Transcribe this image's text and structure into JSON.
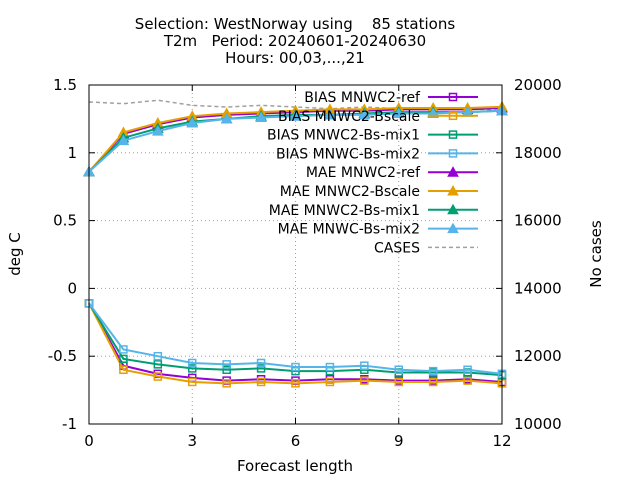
{
  "chart_data": {
    "type": "line",
    "title_lines": [
      "Selection: WestNorway using    85 stations",
      "T2m   Period: 20240601-20240630",
      "Hours: 00,03,...,21"
    ],
    "xlabel": "Forecast length",
    "ylabel": "deg C",
    "y2label": "No cases",
    "xlim": [
      0,
      12
    ],
    "ylim": [
      -1,
      1.5
    ],
    "y2lim": [
      10000,
      20000
    ],
    "xticks": [
      0,
      3,
      6,
      9,
      12
    ],
    "yticks": [
      -1,
      -0.5,
      0,
      0.5,
      1,
      1.5
    ],
    "yticklabels": [
      "-1",
      "-0.5",
      "0",
      "0.5",
      "1",
      "1.5"
    ],
    "y2ticks": [
      10000,
      12000,
      14000,
      16000,
      18000,
      20000
    ],
    "grid": true,
    "legend_position": "top-right",
    "x": [
      0,
      1,
      2,
      3,
      4,
      5,
      6,
      7,
      8,
      9,
      10,
      11,
      12
    ],
    "series": [
      {
        "name": "BIAS MNWC2-ref",
        "axis": "y",
        "color": "#9400d3",
        "marker": "square-open",
        "dash": false,
        "values": [
          -0.11,
          -0.57,
          -0.63,
          -0.66,
          -0.68,
          -0.67,
          -0.68,
          -0.67,
          -0.67,
          -0.68,
          -0.68,
          -0.67,
          -0.69
        ]
      },
      {
        "name": "BIAS MNWC2-Bscale",
        "axis": "y",
        "color": "#e69f00",
        "marker": "square-open",
        "dash": false,
        "values": [
          -0.11,
          -0.6,
          -0.65,
          -0.69,
          -0.7,
          -0.69,
          -0.7,
          -0.69,
          -0.68,
          -0.69,
          -0.69,
          -0.68,
          -0.7
        ]
      },
      {
        "name": "BIAS MNWC2-Bs-mix1",
        "axis": "y",
        "color": "#009e73",
        "marker": "square-open",
        "dash": false,
        "values": [
          -0.11,
          -0.52,
          -0.56,
          -0.59,
          -0.6,
          -0.59,
          -0.61,
          -0.61,
          -0.6,
          -0.62,
          -0.62,
          -0.62,
          -0.64
        ]
      },
      {
        "name": "BIAS MNWC-Bs-mix2",
        "axis": "y",
        "color": "#56b4e9",
        "marker": "square-open",
        "dash": false,
        "values": [
          -0.11,
          -0.45,
          -0.5,
          -0.55,
          -0.56,
          -0.55,
          -0.58,
          -0.58,
          -0.57,
          -0.6,
          -0.61,
          -0.6,
          -0.63
        ]
      },
      {
        "name": "MAE MNWC2-ref",
        "axis": "y",
        "color": "#9400d3",
        "marker": "triangle-filled",
        "dash": false,
        "values": [
          0.86,
          1.14,
          1.21,
          1.26,
          1.28,
          1.29,
          1.3,
          1.31,
          1.31,
          1.32,
          1.32,
          1.32,
          1.33
        ]
      },
      {
        "name": "MAE MNWC2-Bscale",
        "axis": "y",
        "color": "#e69f00",
        "marker": "triangle-filled",
        "dash": false,
        "values": [
          0.86,
          1.15,
          1.22,
          1.27,
          1.29,
          1.3,
          1.31,
          1.32,
          1.32,
          1.33,
          1.33,
          1.33,
          1.34
        ]
      },
      {
        "name": "MAE MNWC2-Bs-mix1",
        "axis": "y",
        "color": "#009e73",
        "marker": "triangle-filled",
        "dash": false,
        "values": [
          0.86,
          1.11,
          1.18,
          1.23,
          1.25,
          1.27,
          1.28,
          1.28,
          1.29,
          1.3,
          1.3,
          1.3,
          1.31
        ]
      },
      {
        "name": "MAE MNWC-Bs-mix2",
        "axis": "y",
        "color": "#56b4e9",
        "marker": "triangle-filled",
        "dash": false,
        "values": [
          0.86,
          1.09,
          1.16,
          1.22,
          1.25,
          1.26,
          1.27,
          1.28,
          1.28,
          1.29,
          1.29,
          1.3,
          1.31
        ]
      },
      {
        "name": "CASES",
        "axis": "y2",
        "color": "#a0a0a0",
        "marker": "none",
        "dash": true,
        "values": [
          19500,
          19450,
          19550,
          19400,
          19350,
          19400,
          19350,
          19300,
          19350,
          19300,
          19300,
          19300,
          19250
        ]
      }
    ]
  }
}
